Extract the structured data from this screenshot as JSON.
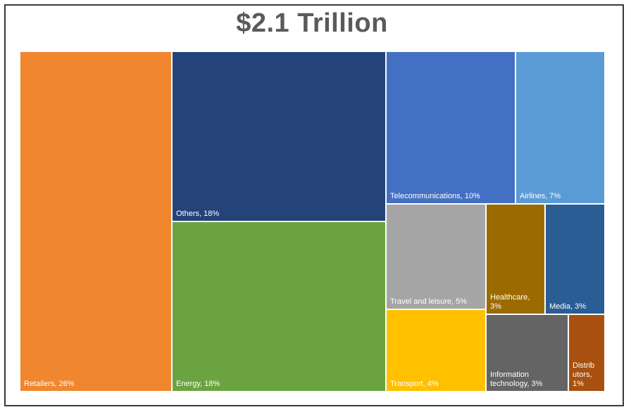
{
  "chart_data": {
    "type": "treemap",
    "title": "$2.1 Trillion",
    "items": [
      {
        "label": "Retailers",
        "percent": "26%",
        "value": 26,
        "color": "#F0862E"
      },
      {
        "label": "Others",
        "percent": "18%",
        "value": 18,
        "color": "#244378"
      },
      {
        "label": "Energy",
        "percent": "18%",
        "value": 18,
        "color": "#6BA341"
      },
      {
        "label": "Telecommunications",
        "percent": "10%",
        "value": 10,
        "color": "#4470C4"
      },
      {
        "label": "Airlines",
        "percent": "7%",
        "value": 7,
        "color": "#5B9BD5"
      },
      {
        "label": "Travel and leisure",
        "percent": "5%",
        "value": 5,
        "color": "#A5A5A5"
      },
      {
        "label": "Healthcare",
        "percent": "3%",
        "value": 3,
        "color": "#9C6B00"
      },
      {
        "label": "Media",
        "percent": "3%",
        "value": 3,
        "color": "#2A5D93"
      },
      {
        "label": "Transport",
        "percent": "4%",
        "value": 4,
        "color": "#FFC000"
      },
      {
        "label": "Information technology",
        "percent": "3%",
        "value": 3,
        "color": "#646464"
      },
      {
        "label": "Distributors",
        "percent": "1%",
        "value": 1,
        "color": "#A7500F"
      }
    ]
  }
}
